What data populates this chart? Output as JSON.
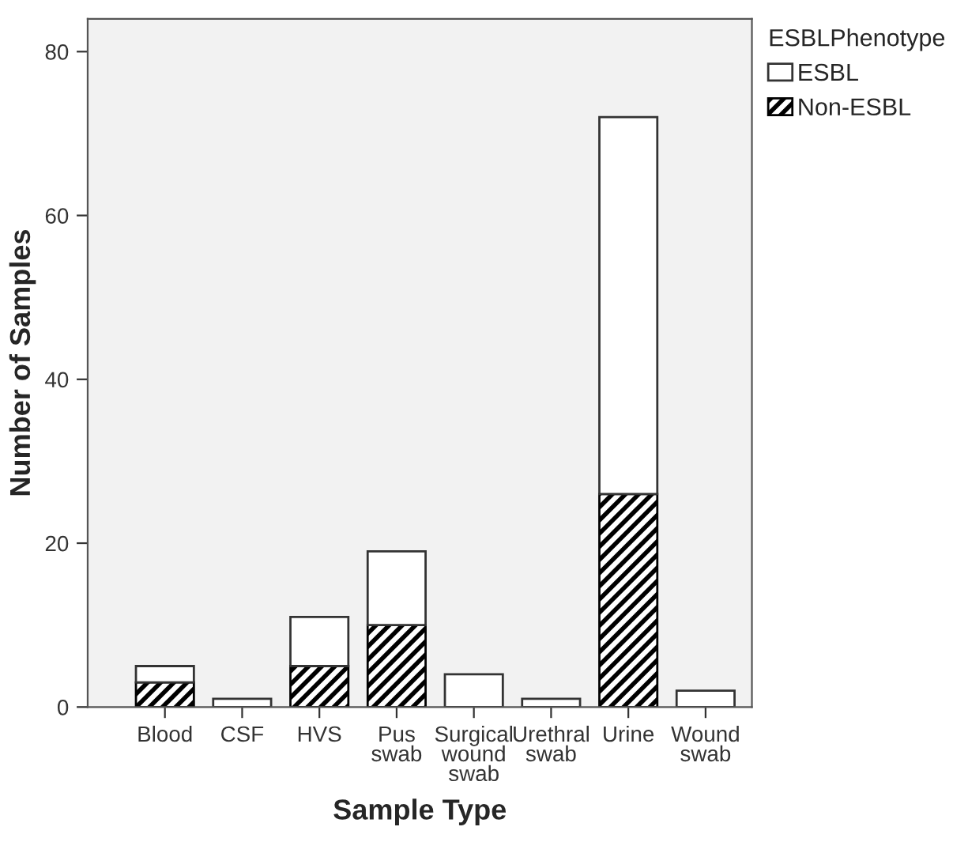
{
  "chart_data": {
    "type": "bar",
    "xlabel": "Sample Type",
    "ylabel": "Number of Samples",
    "legend_title": "ESBLPhenotype",
    "categories": [
      "Blood",
      "CSF",
      "HVS",
      "Pus\nswab",
      "Surgical\nwound\nswab",
      "Urethral\nswab",
      "Urine",
      "Wound\nswab"
    ],
    "series": [
      {
        "name": "Non-ESBL",
        "color": "#000000",
        "values": [
          3,
          0,
          5,
          10,
          0,
          0,
          26,
          0
        ]
      },
      {
        "name": "ESBL",
        "color": "#ffffff",
        "values": [
          2,
          1,
          6,
          9,
          4,
          1,
          46,
          2
        ]
      }
    ],
    "stacked": true,
    "ylim": [
      0,
      84
    ],
    "yticks": [
      0,
      20,
      40,
      60,
      80
    ],
    "grid": false,
    "legend": "top right"
  }
}
